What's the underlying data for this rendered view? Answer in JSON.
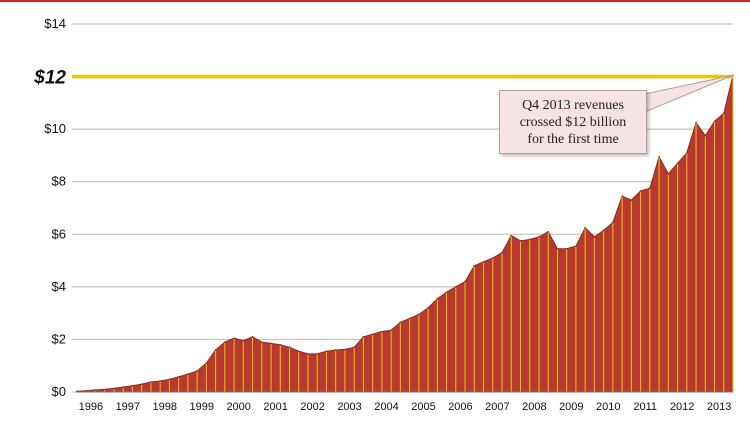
{
  "colors": {
    "top_rule": "#c0312b",
    "area_fill": "#b83a2e",
    "area_stroke": "#8e2a20",
    "quarter_line": "#f0c419",
    "highlight_line": "#f2c200",
    "grid": "#bdb9a6",
    "axis_text": "#111111",
    "callout_bg": "#f6e3e3",
    "callout_border": "#b89a9a"
  },
  "callout": {
    "lines": [
      "Q4 2013 revenues",
      "crossed $12 billion",
      "for the first time"
    ]
  },
  "chart_data": {
    "type": "area",
    "title": "",
    "xlabel": "",
    "ylabel": "",
    "x_tick_labels": [
      "1996",
      "1997",
      "1998",
      "1999",
      "2000",
      "2001",
      "2002",
      "2003",
      "2004",
      "2005",
      "2006",
      "2007",
      "2008",
      "2009",
      "2010",
      "2011",
      "2012",
      "2013"
    ],
    "y_tick_labels": [
      "$0",
      "$2",
      "$4",
      "$6",
      "$8",
      "$10",
      "$12",
      "$14"
    ],
    "y_ticks": [
      0,
      2,
      4,
      6,
      8,
      10,
      12,
      14
    ],
    "highlight_tick": 12,
    "ylim": [
      0,
      14
    ],
    "grid": true,
    "series": [
      {
        "quarters": [
          "1996 Q1",
          "1996 Q2",
          "1996 Q3",
          "1996 Q4",
          "1997 Q1",
          "1997 Q2",
          "1997 Q3",
          "1997 Q4",
          "1998 Q1",
          "1998 Q2",
          "1998 Q3",
          "1998 Q4",
          "1999 Q1",
          "1999 Q2",
          "1999 Q3",
          "1999 Q4",
          "2000 Q1",
          "2000 Q2",
          "2000 Q3",
          "2000 Q4",
          "2001 Q1",
          "2001 Q2",
          "2001 Q3",
          "2001 Q4",
          "2002 Q1",
          "2002 Q2",
          "2002 Q3",
          "2002 Q4",
          "2003 Q1",
          "2003 Q2",
          "2003 Q3",
          "2003 Q4",
          "2004 Q1",
          "2004 Q2",
          "2004 Q3",
          "2004 Q4",
          "2005 Q1",
          "2005 Q2",
          "2005 Q3",
          "2005 Q4",
          "2006 Q1",
          "2006 Q2",
          "2006 Q3",
          "2006 Q4",
          "2007 Q1",
          "2007 Q2",
          "2007 Q3",
          "2007 Q4",
          "2008 Q1",
          "2008 Q2",
          "2008 Q3",
          "2008 Q4",
          "2009 Q1",
          "2009 Q2",
          "2009 Q3",
          "2009 Q4",
          "2010 Q1",
          "2010 Q2",
          "2010 Q3",
          "2010 Q4",
          "2011 Q1",
          "2011 Q2",
          "2011 Q3",
          "2011 Q4",
          "2012 Q1",
          "2012 Q2",
          "2012 Q3",
          "2012 Q4",
          "2013 Q1",
          "2013 Q2",
          "2013 Q3",
          "2013 Q4"
        ],
        "values": [
          0.03,
          0.05,
          0.08,
          0.1,
          0.14,
          0.19,
          0.24,
          0.3,
          0.38,
          0.42,
          0.48,
          0.58,
          0.68,
          0.8,
          1.1,
          1.6,
          1.9,
          2.05,
          1.95,
          2.1,
          1.9,
          1.85,
          1.8,
          1.7,
          1.55,
          1.45,
          1.45,
          1.55,
          1.6,
          1.62,
          1.7,
          2.1,
          2.2,
          2.3,
          2.35,
          2.65,
          2.8,
          2.95,
          3.2,
          3.55,
          3.8,
          4.0,
          4.2,
          4.8,
          4.95,
          5.1,
          5.3,
          5.95,
          5.75,
          5.8,
          5.9,
          6.1,
          5.45,
          5.45,
          5.55,
          6.25,
          5.9,
          6.15,
          6.45,
          7.45,
          7.3,
          7.65,
          7.75,
          8.95,
          8.3,
          8.7,
          9.1,
          10.25,
          9.75,
          10.3,
          10.6,
          12.05
        ]
      }
    ]
  }
}
